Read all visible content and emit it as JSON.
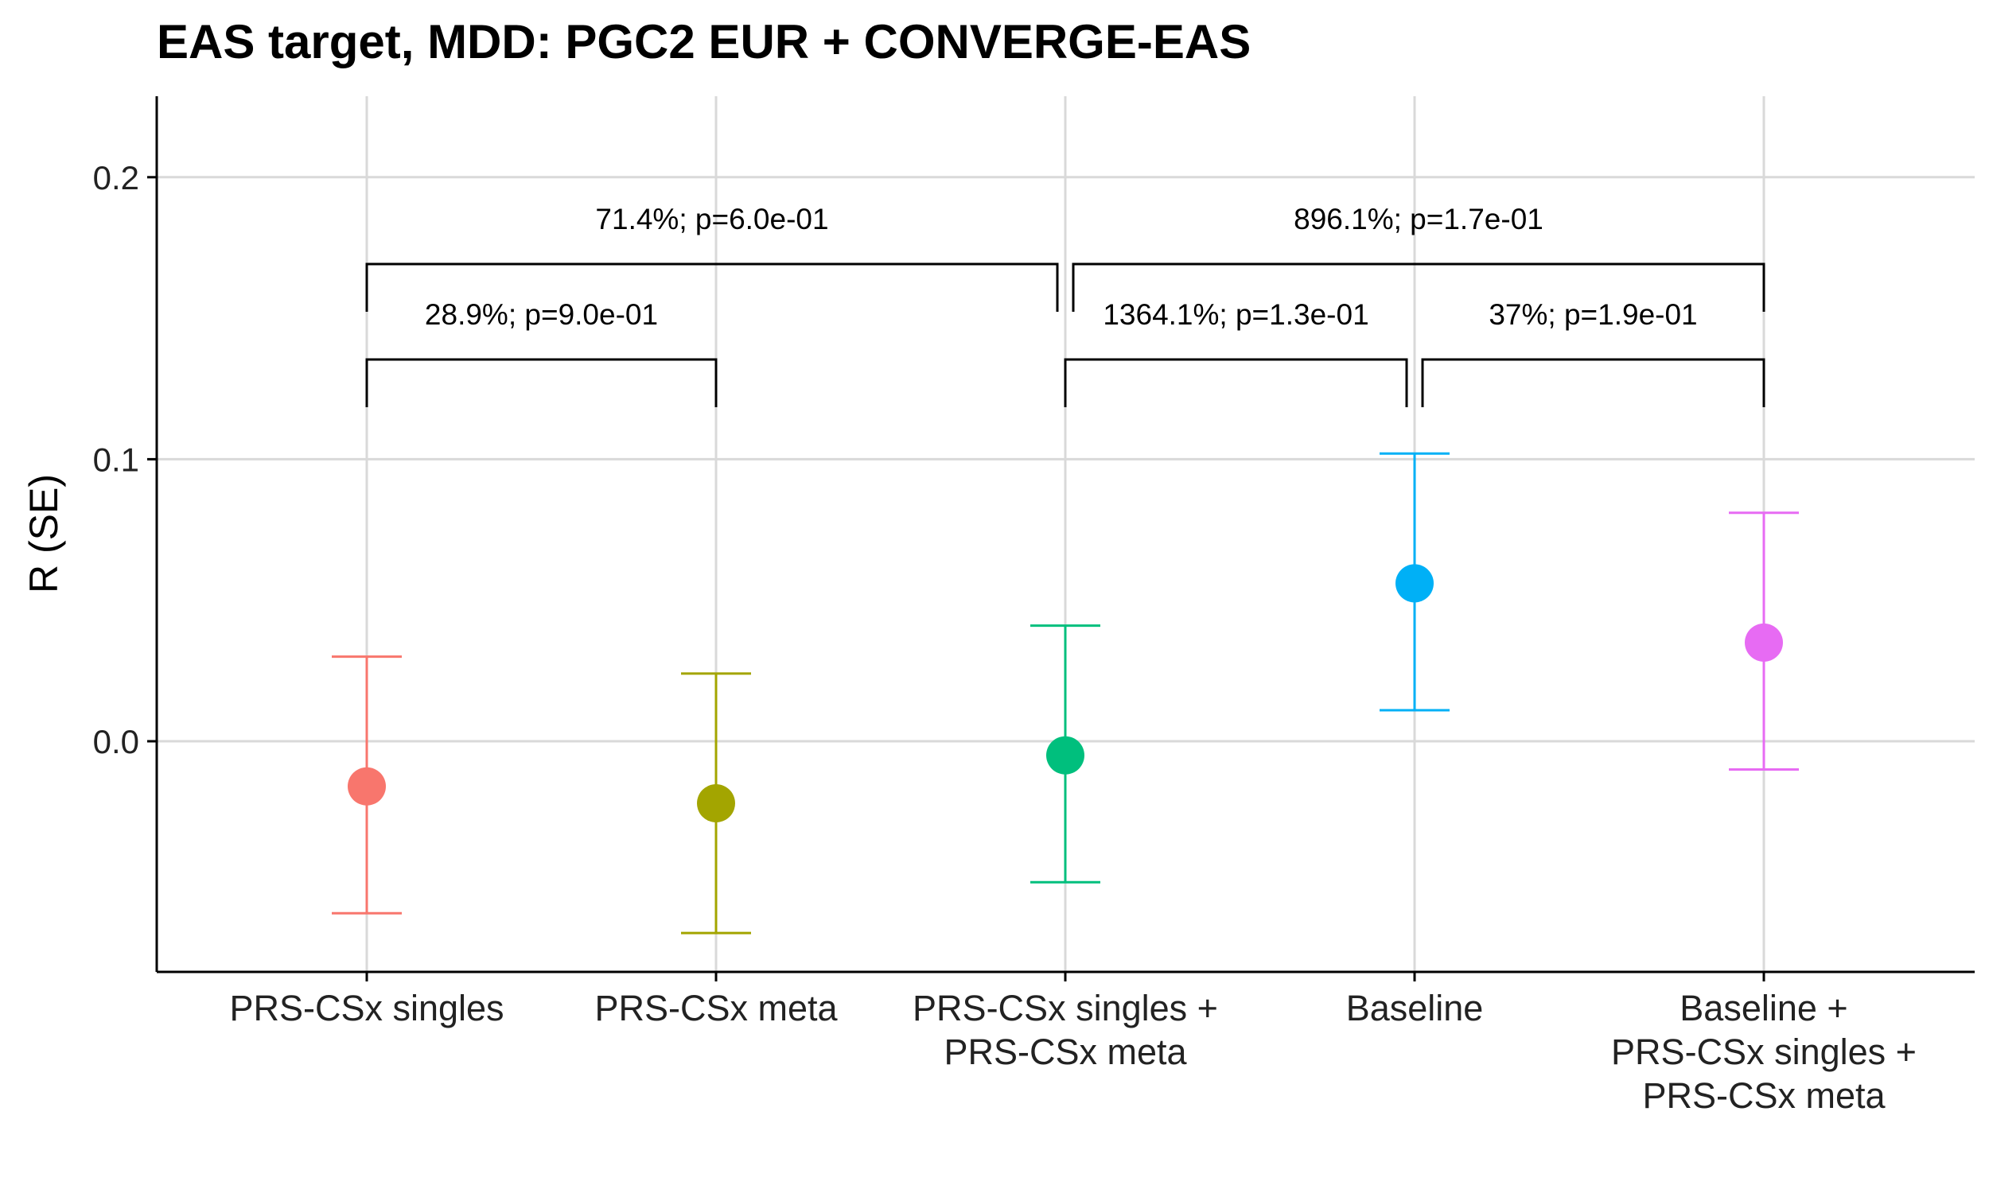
{
  "chart_data": {
    "type": "scatter",
    "title": "EAS target, MDD: PGC2 EUR + CONVERGE-EAS",
    "xlabel": "",
    "ylabel": "R (SE)",
    "ylim": [
      -0.08,
      0.23
    ],
    "yticks": [
      0.0,
      0.1,
      0.2
    ],
    "ytick_labels": [
      "0.0",
      "0.1",
      "0.2"
    ],
    "grid": true,
    "categories": [
      [
        "PRS-CSx singles"
      ],
      [
        "PRS-CSx meta"
      ],
      [
        "PRS-CSx singles +",
        "PRS-CSx meta"
      ],
      [
        "Baseline"
      ],
      [
        "Baseline +",
        "PRS-CSx singles +",
        "PRS-CSx meta"
      ]
    ],
    "points": [
      {
        "value": -0.016,
        "lower": -0.061,
        "upper": 0.03,
        "color": "#F8766D"
      },
      {
        "value": -0.022,
        "lower": -0.068,
        "upper": 0.024,
        "color": "#A3A500"
      },
      {
        "value": -0.005,
        "lower": -0.05,
        "upper": 0.041,
        "color": "#00BF7D"
      },
      {
        "value": 0.056,
        "lower": 0.011,
        "upper": 0.102,
        "color": "#00B0F6"
      },
      {
        "value": 0.035,
        "lower": -0.01,
        "upper": 0.081,
        "color": "#E76BF3"
      }
    ],
    "annotations": [
      {
        "from": 0,
        "to": 1,
        "level": 1,
        "label": "28.9%; p=9.0e-01"
      },
      {
        "from": 2,
        "to": 3,
        "level": 1,
        "label": "1364.1%; p=1.3e-01"
      },
      {
        "from": 3,
        "to": 4,
        "level": 1,
        "label": "37%; p=1.9e-01"
      },
      {
        "from": 0,
        "to": 2,
        "level": 2,
        "label": "71.4%; p=6.0e-01"
      },
      {
        "from": 2,
        "to": 4,
        "level": 2,
        "label": "896.1%; p=1.7e-01"
      }
    ]
  }
}
